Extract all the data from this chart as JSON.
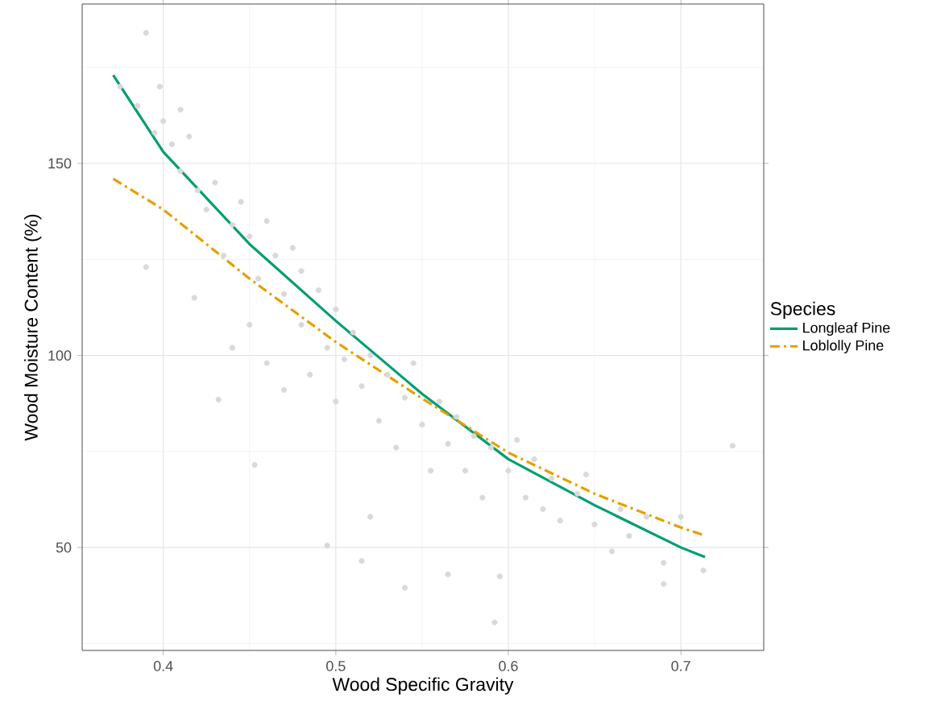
{
  "chart_data": {
    "type": "scatter",
    "xlabel": "Wood Specific Gravity",
    "ylabel": "Wood Moisture Content (%)",
    "legend_title": "Species",
    "xlim": [
      0.353,
      0.748
    ],
    "ylim": [
      23.2,
      191.5
    ],
    "xticks": [
      0.4,
      0.5,
      0.6,
      0.7
    ],
    "yticks": [
      50,
      100,
      150
    ],
    "grid": true,
    "legend": "right",
    "series": [
      {
        "color": "#d9d9d9",
        "marker": "circle",
        "x": [
          0.375,
          0.385,
          0.39,
          0.39,
          0.395,
          0.398,
          0.4,
          0.405,
          0.41,
          0.41,
          0.415,
          0.418,
          0.42,
          0.425,
          0.43,
          0.432,
          0.435,
          0.44,
          0.44,
          0.445,
          0.45,
          0.45,
          0.453,
          0.455,
          0.46,
          0.46,
          0.465,
          0.47,
          0.47,
          0.475,
          0.48,
          0.48,
          0.485,
          0.49,
          0.495,
          0.495,
          0.5,
          0.5,
          0.505,
          0.51,
          0.515,
          0.515,
          0.52,
          0.52,
          0.525,
          0.53,
          0.535,
          0.54,
          0.54,
          0.545,
          0.55,
          0.555,
          0.56,
          0.565,
          0.565,
          0.57,
          0.575,
          0.58,
          0.585,
          0.59,
          0.592,
          0.595,
          0.6,
          0.605,
          0.61,
          0.615,
          0.62,
          0.625,
          0.63,
          0.64,
          0.645,
          0.65,
          0.66,
          0.665,
          0.67,
          0.68,
          0.69,
          0.69,
          0.7,
          0.713,
          0.73
        ],
        "values": [
          170,
          165,
          184,
          123,
          158,
          170,
          161,
          155,
          164,
          148,
          157,
          115,
          143,
          138,
          145,
          88.5,
          126,
          134,
          102,
          140,
          131,
          108,
          71.5,
          120,
          135,
          98,
          126,
          116,
          91,
          128,
          108,
          122,
          95,
          117,
          50.5,
          102,
          112,
          88,
          99,
          106,
          46.5,
          92,
          58,
          100,
          83,
          95,
          76,
          39.5,
          89,
          98,
          82,
          70,
          88,
          43,
          77,
          84,
          70,
          79,
          63,
          76,
          30.5,
          42.5,
          70,
          78,
          63,
          73,
          60,
          68,
          57,
          64,
          69,
          56,
          49,
          60,
          53,
          58,
          40.5,
          46,
          58,
          44,
          76.5
        ]
      },
      {
        "type": "line",
        "name": "Longleaf Pine",
        "color": "#009e73",
        "line_style": "solid",
        "marker": "none",
        "x": [
          0.371,
          0.4,
          0.45,
          0.5,
          0.55,
          0.6,
          0.65,
          0.7,
          0.714
        ],
        "values": [
          173,
          153,
          129,
          109,
          90,
          73,
          61,
          50,
          47.5
        ]
      },
      {
        "type": "line",
        "name": "Loblolly Pine",
        "color": "#e69f00",
        "line_style": "dashdot",
        "marker": "none",
        "x": [
          0.371,
          0.4,
          0.45,
          0.5,
          0.55,
          0.6,
          0.65,
          0.7,
          0.714
        ],
        "values": [
          146,
          138,
          120,
          103.5,
          88.8,
          74.7,
          64,
          55.2,
          53.1
        ]
      }
    ]
  }
}
